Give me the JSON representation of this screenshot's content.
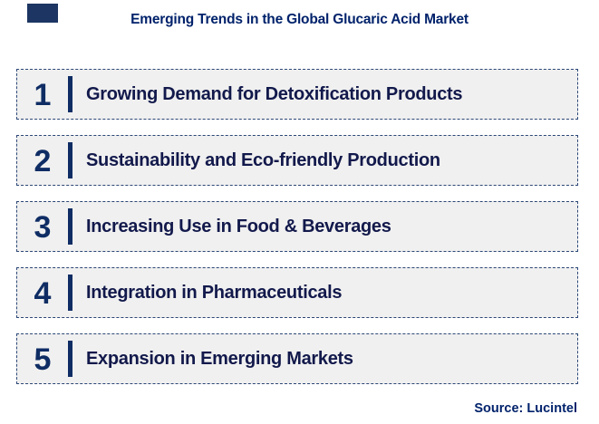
{
  "header": {
    "title": "Emerging Trends in the Global Glucaric Acid Market"
  },
  "trends": [
    {
      "number": "1",
      "label": "Growing Demand for Detoxification Products"
    },
    {
      "number": "2",
      "label": "Sustainability and Eco-friendly Production"
    },
    {
      "number": "3",
      "label": "Increasing Use in Food & Beverages"
    },
    {
      "number": "4",
      "label": "Integration in Pharmaceuticals"
    },
    {
      "number": "5",
      "label": "Expansion in Emerging Markets"
    }
  ],
  "footer": {
    "source": "Source: Lucintel"
  },
  "colors": {
    "title_navy": "#00226b",
    "accent_navy": "#0f2d64",
    "row_text_navy": "#12194b",
    "row_background": "#f0f0f0",
    "dashed_border": "#2c4777",
    "corner_mark": "#1c3562"
  }
}
